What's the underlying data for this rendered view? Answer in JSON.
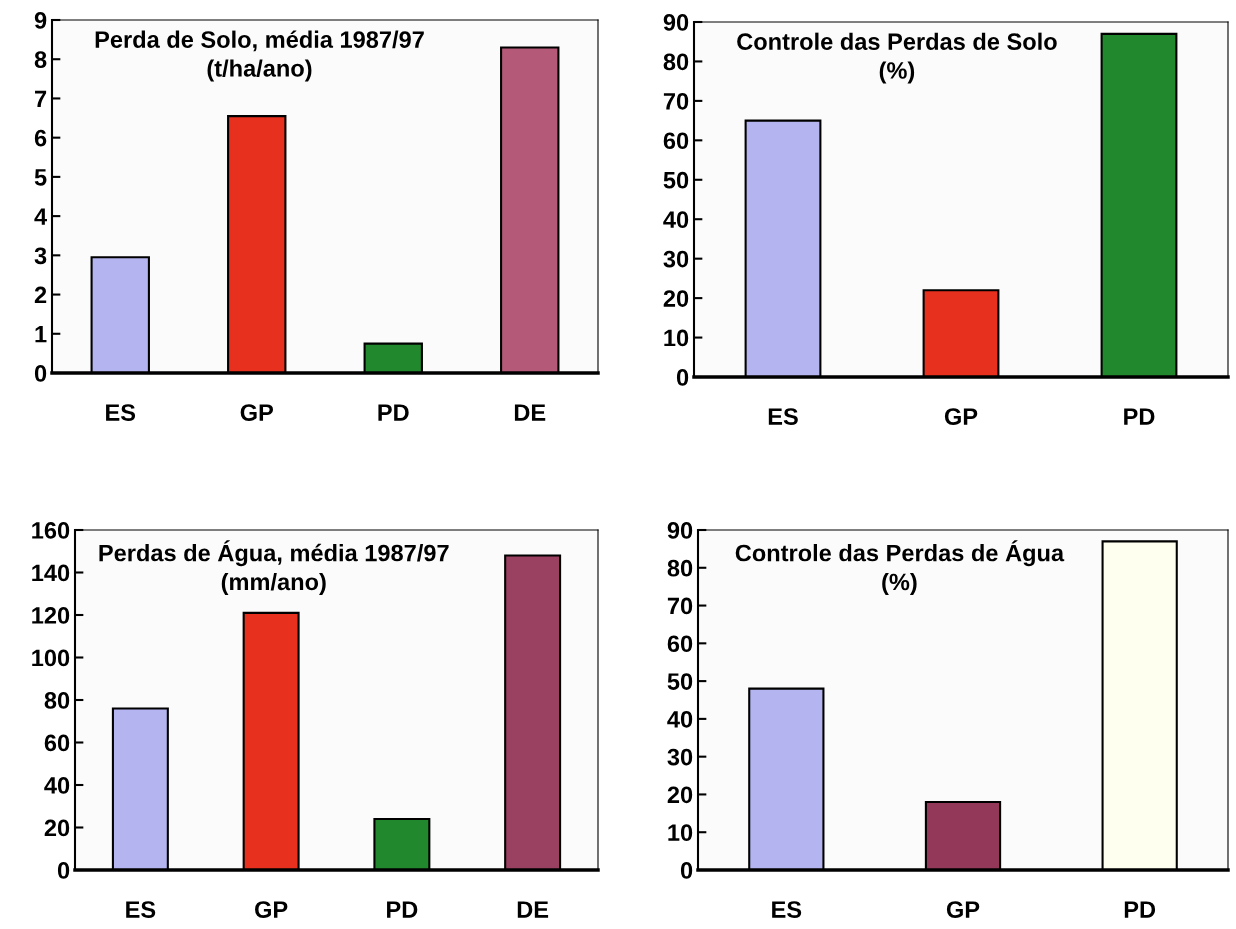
{
  "chart_data": [
    {
      "type": "bar",
      "title": "Perda de Solo, média 1987/97\n(t/ha/ano)",
      "categories": [
        "ES",
        "GP",
        "PD",
        "DE"
      ],
      "values": [
        2.95,
        6.55,
        0.75,
        8.3
      ],
      "colors": [
        "#b4b4f0",
        "#e8301e",
        "#22882e",
        "#b45a78"
      ],
      "ylim": [
        0,
        9
      ],
      "yticks": [
        0,
        1,
        2,
        3,
        4,
        5,
        6,
        7,
        8,
        9
      ]
    },
    {
      "type": "bar",
      "title": "Controle das Perdas de Solo\n(%)",
      "categories": [
        "ES",
        "GP",
        "PD"
      ],
      "values": [
        65,
        22,
        87
      ],
      "colors": [
        "#b4b4f0",
        "#e8301e",
        "#22882e"
      ],
      "ylim": [
        0,
        90
      ],
      "yticks": [
        0,
        10,
        20,
        30,
        40,
        50,
        60,
        70,
        80,
        90
      ]
    },
    {
      "type": "bar",
      "title": "Perdas de Água, média 1987/97\n(mm/ano)",
      "categories": [
        "ES",
        "GP",
        "PD",
        "DE"
      ],
      "values": [
        76,
        121,
        24,
        148
      ],
      "colors": [
        "#b4b4f0",
        "#e8301e",
        "#22882e",
        "#9a4060"
      ],
      "ylim": [
        0,
        160
      ],
      "yticks": [
        0,
        20,
        40,
        60,
        80,
        100,
        120,
        140,
        160
      ]
    },
    {
      "type": "bar",
      "title": "Controle das Perdas de Água\n(%)",
      "categories": [
        "ES",
        "GP",
        "PD"
      ],
      "values": [
        48,
        18,
        87
      ],
      "colors": [
        "#b4b4f0",
        "#94385a",
        "#fffff0"
      ],
      "ylim": [
        0,
        90
      ],
      "yticks": [
        0,
        10,
        20,
        30,
        40,
        50,
        60,
        70,
        80,
        90
      ]
    }
  ]
}
